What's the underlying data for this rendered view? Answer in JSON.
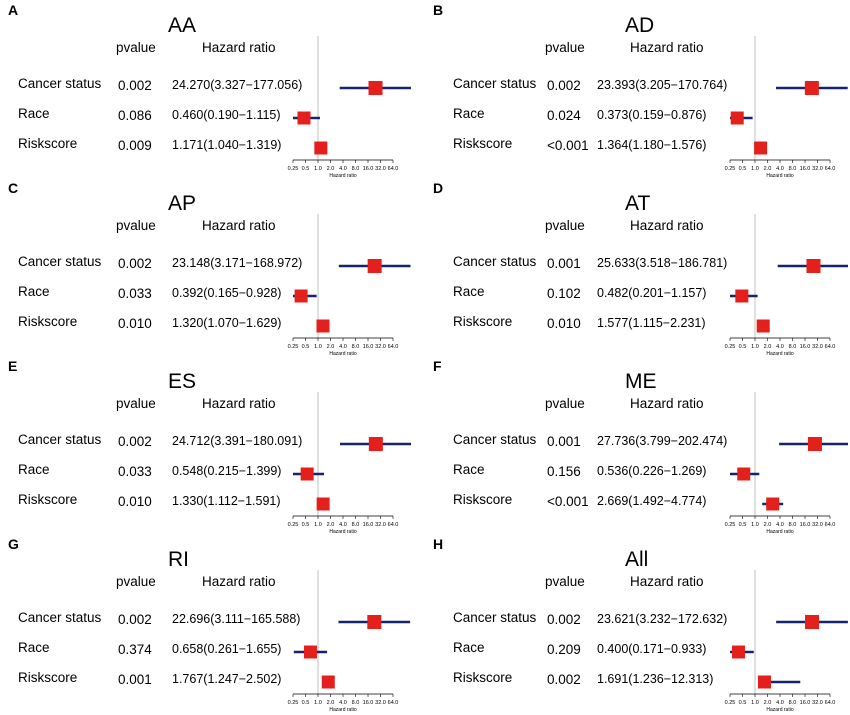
{
  "axis": {
    "xlabel": "Hazard ratio",
    "scale": "log2",
    "ticks": [
      "0.25",
      "0.5",
      "1.0",
      "2.0",
      "4.0",
      "8.0",
      "16.0",
      "32.0",
      "64.0"
    ],
    "xlim": [
      0.25,
      64
    ],
    "reference_line": 1.0
  },
  "header": {
    "pvalue_label": "pvalue",
    "hr_label": "Hazard ratio"
  },
  "colors": {
    "marker": "#e3201b",
    "ci_line": "#16246b",
    "ref_line": "#c0c0c0"
  },
  "chart_data": [
    {
      "type": "forest",
      "letter": "A",
      "title": "AA",
      "xlabel": "Hazard ratio",
      "rows": [
        {
          "variable": "Cancer status",
          "pvalue": "0.002",
          "hr_text": "24.270(3.327−177.056)",
          "hr": 24.27,
          "lower": 3.327,
          "upper": 177.056
        },
        {
          "variable": "Race",
          "pvalue": "0.086",
          "hr_text": "0.460(0.190−1.115)",
          "hr": 0.46,
          "lower": 0.19,
          "upper": 1.115
        },
        {
          "variable": "Riskscore",
          "pvalue": "0.009",
          "hr_text": "1.171(1.040−1.319)",
          "hr": 1.171,
          "lower": 1.04,
          "upper": 1.319
        }
      ]
    },
    {
      "type": "forest",
      "letter": "B",
      "title": "AD",
      "xlabel": "Hazard ratio",
      "rows": [
        {
          "variable": "Cancer status",
          "pvalue": "0.002",
          "hr_text": "23.393(3.205−170.764)",
          "hr": 23.393,
          "lower": 3.205,
          "upper": 170.764
        },
        {
          "variable": "Race",
          "pvalue": "0.024",
          "hr_text": "0.373(0.159−0.876)",
          "hr": 0.373,
          "lower": 0.159,
          "upper": 0.876
        },
        {
          "variable": "Riskscore",
          "pvalue": "<0.001",
          "hr_text": "1.364(1.180−1.576)",
          "hr": 1.364,
          "lower": 1.18,
          "upper": 1.576
        }
      ]
    },
    {
      "type": "forest",
      "letter": "C",
      "title": "AP",
      "xlabel": "Hazard ratio",
      "rows": [
        {
          "variable": "Cancer status",
          "pvalue": "0.002",
          "hr_text": "23.148(3.171−168.972)",
          "hr": 23.148,
          "lower": 3.171,
          "upper": 168.972
        },
        {
          "variable": "Race",
          "pvalue": "0.033",
          "hr_text": "0.392(0.165−0.928)",
          "hr": 0.392,
          "lower": 0.165,
          "upper": 0.928
        },
        {
          "variable": "Riskscore",
          "pvalue": "0.010",
          "hr_text": "1.320(1.070−1.629)",
          "hr": 1.32,
          "lower": 1.07,
          "upper": 1.629
        }
      ]
    },
    {
      "type": "forest",
      "letter": "D",
      "title": "AT",
      "xlabel": "Hazard ratio",
      "rows": [
        {
          "variable": "Cancer status",
          "pvalue": "0.001",
          "hr_text": "25.633(3.518−186.781)",
          "hr": 25.633,
          "lower": 3.518,
          "upper": 186.781
        },
        {
          "variable": "Race",
          "pvalue": "0.102",
          "hr_text": "0.482(0.201−1.157)",
          "hr": 0.482,
          "lower": 0.201,
          "upper": 1.157
        },
        {
          "variable": "Riskscore",
          "pvalue": "0.010",
          "hr_text": "1.577(1.115−2.231)",
          "hr": 1.577,
          "lower": 1.115,
          "upper": 2.231
        }
      ]
    },
    {
      "type": "forest",
      "letter": "E",
      "title": "ES",
      "xlabel": "Hazard ratio",
      "rows": [
        {
          "variable": "Cancer status",
          "pvalue": "0.002",
          "hr_text": "24.712(3.391−180.091)",
          "hr": 24.712,
          "lower": 3.391,
          "upper": 180.091
        },
        {
          "variable": "Race",
          "pvalue": "0.033",
          "hr_text": "0.548(0.215−1.399)",
          "hr": 0.548,
          "lower": 0.215,
          "upper": 1.399
        },
        {
          "variable": "Riskscore",
          "pvalue": "0.010",
          "hr_text": "1.330(1.112−1.591)",
          "hr": 1.33,
          "lower": 1.112,
          "upper": 1.591
        }
      ]
    },
    {
      "type": "forest",
      "letter": "F",
      "title": "ME",
      "xlabel": "Hazard ratio",
      "rows": [
        {
          "variable": "Cancer status",
          "pvalue": "0.001",
          "hr_text": "27.736(3.799−202.474)",
          "hr": 27.736,
          "lower": 3.799,
          "upper": 202.474
        },
        {
          "variable": "Race",
          "pvalue": "0.156",
          "hr_text": "0.536(0.226−1.269)",
          "hr": 0.536,
          "lower": 0.226,
          "upper": 1.269
        },
        {
          "variable": "Riskscore",
          "pvalue": "<0.001",
          "hr_text": "2.669(1.492−4.774)",
          "hr": 2.669,
          "lower": 1.492,
          "upper": 4.774
        }
      ]
    },
    {
      "type": "forest",
      "letter": "G",
      "title": "RI",
      "xlabel": "Hazard ratio",
      "rows": [
        {
          "variable": "Cancer status",
          "pvalue": "0.002",
          "hr_text": "22.696(3.111−165.588)",
          "hr": 22.696,
          "lower": 3.111,
          "upper": 165.588
        },
        {
          "variable": "Race",
          "pvalue": "0.374",
          "hr_text": "0.658(0.261−1.655)",
          "hr": 0.658,
          "lower": 0.261,
          "upper": 1.655
        },
        {
          "variable": "Riskscore",
          "pvalue": "0.001",
          "hr_text": "1.767(1.247−2.502)",
          "hr": 1.767,
          "lower": 1.247,
          "upper": 2.502
        }
      ]
    },
    {
      "type": "forest",
      "letter": "H",
      "title": "All",
      "xlabel": "Hazard ratio",
      "rows": [
        {
          "variable": "Cancer status",
          "pvalue": "0.002",
          "hr_text": "23.621(3.232−172.632)",
          "hr": 23.621,
          "lower": 3.232,
          "upper": 172.632
        },
        {
          "variable": "Race",
          "pvalue": "0.209",
          "hr_text": "0.400(0.171−0.933)",
          "hr": 0.4,
          "lower": 0.171,
          "upper": 0.933
        },
        {
          "variable": "Riskscore",
          "pvalue": "0.002",
          "hr_text": "1.691(1.236−12.313)",
          "hr": 1.691,
          "lower": 1.236,
          "upper": 12.313
        }
      ]
    }
  ]
}
